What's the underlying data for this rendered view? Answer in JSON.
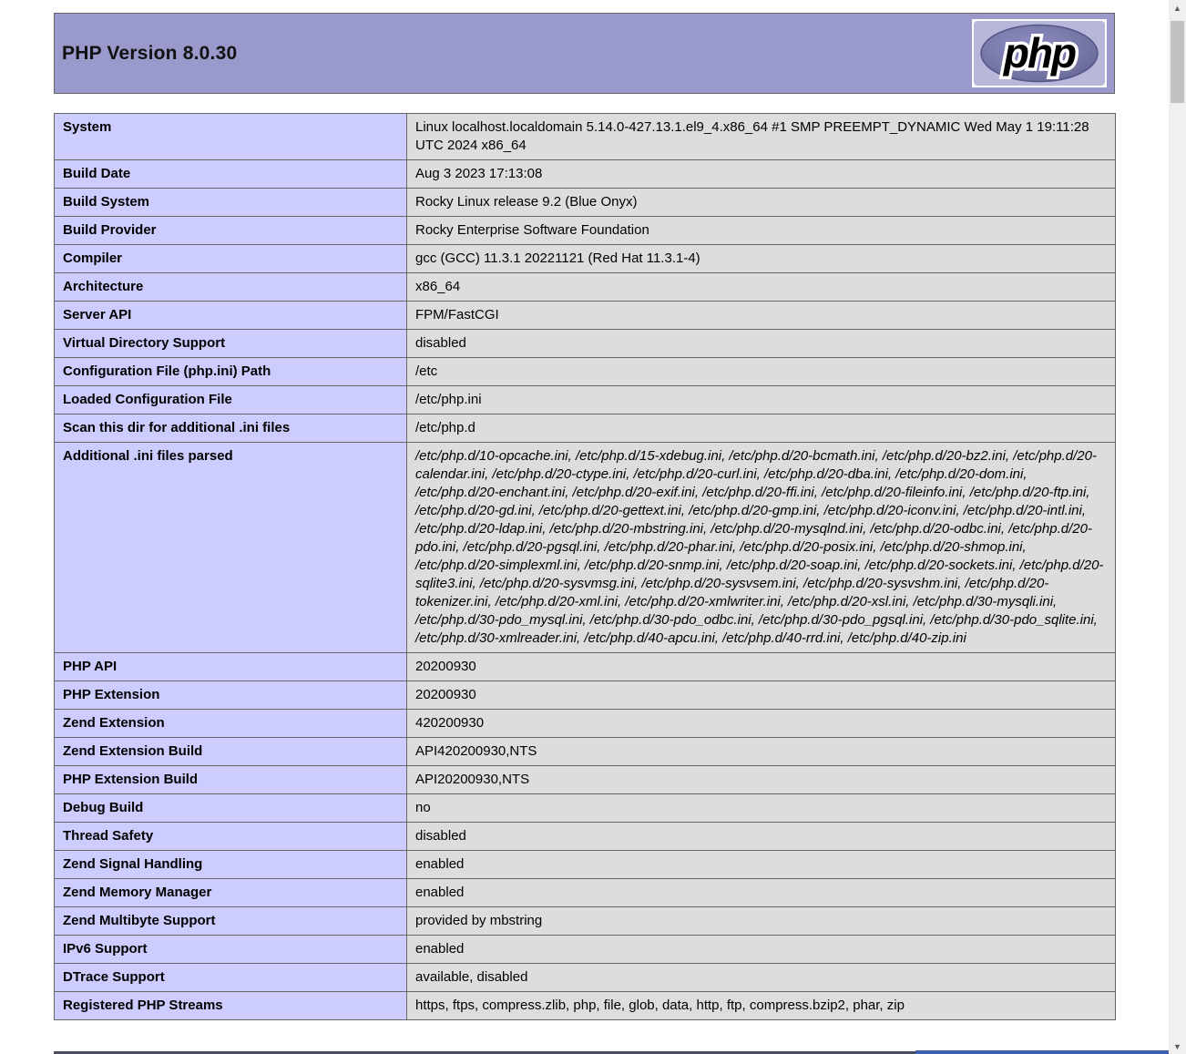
{
  "header": {
    "title": "PHP Version 8.0.30",
    "logo_text": "php"
  },
  "colors": {
    "header_bg": "#9999cc",
    "label_bg": "#ccccff",
    "value_bg": "#dddddd",
    "border": "#666666",
    "logo_frame": "#b7b7d9",
    "logo_ellipse_center": "#8e8ec4",
    "logo_ellipse_edge": "#5e5e96",
    "bottom_blue_bar": "#3c5fae"
  },
  "table": {
    "rows": [
      {
        "label": "System",
        "value": "Linux localhost.localdomain 5.14.0-427.13.1.el9_4.x86_64 #1 SMP PREEMPT_DYNAMIC Wed May 1 19:11:28 UTC 2024 x86_64",
        "italic": false
      },
      {
        "label": "Build Date",
        "value": "Aug 3 2023 17:13:08",
        "italic": false
      },
      {
        "label": "Build System",
        "value": "Rocky Linux release 9.2 (Blue Onyx)",
        "italic": false
      },
      {
        "label": "Build Provider",
        "value": "Rocky Enterprise Software Foundation",
        "italic": false
      },
      {
        "label": "Compiler",
        "value": "gcc (GCC) 11.3.1 20221121 (Red Hat 11.3.1-4)",
        "italic": false
      },
      {
        "label": "Architecture",
        "value": "x86_64",
        "italic": false
      },
      {
        "label": "Server API",
        "value": "FPM/FastCGI",
        "italic": false
      },
      {
        "label": "Virtual Directory Support",
        "value": "disabled",
        "italic": false
      },
      {
        "label": "Configuration File (php.ini) Path",
        "value": "/etc",
        "italic": false
      },
      {
        "label": "Loaded Configuration File",
        "value": "/etc/php.ini",
        "italic": false
      },
      {
        "label": "Scan this dir for additional .ini files",
        "value": "/etc/php.d",
        "italic": false
      },
      {
        "label": "Additional .ini files parsed",
        "value": "/etc/php.d/10-opcache.ini, /etc/php.d/15-xdebug.ini, /etc/php.d/20-bcmath.ini, /etc/php.d/20-bz2.ini, /etc/php.d/20-calendar.ini, /etc/php.d/20-ctype.ini, /etc/php.d/20-curl.ini, /etc/php.d/20-dba.ini, /etc/php.d/20-dom.ini, /etc/php.d/20-enchant.ini, /etc/php.d/20-exif.ini, /etc/php.d/20-ffi.ini, /etc/php.d/20-fileinfo.ini, /etc/php.d/20-ftp.ini, /etc/php.d/20-gd.ini, /etc/php.d/20-gettext.ini, /etc/php.d/20-gmp.ini, /etc/php.d/20-iconv.ini, /etc/php.d/20-intl.ini, /etc/php.d/20-ldap.ini, /etc/php.d/20-mbstring.ini, /etc/php.d/20-mysqlnd.ini, /etc/php.d/20-odbc.ini, /etc/php.d/20-pdo.ini, /etc/php.d/20-pgsql.ini, /etc/php.d/20-phar.ini, /etc/php.d/20-posix.ini, /etc/php.d/20-shmop.ini, /etc/php.d/20-simplexml.ini, /etc/php.d/20-snmp.ini, /etc/php.d/20-soap.ini, /etc/php.d/20-sockets.ini, /etc/php.d/20-sqlite3.ini, /etc/php.d/20-sysvmsg.ini, /etc/php.d/20-sysvsem.ini, /etc/php.d/20-sysvshm.ini, /etc/php.d/20-tokenizer.ini, /etc/php.d/20-xml.ini, /etc/php.d/20-xmlwriter.ini, /etc/php.d/20-xsl.ini, /etc/php.d/30-mysqli.ini, /etc/php.d/30-pdo_mysql.ini, /etc/php.d/30-pdo_odbc.ini, /etc/php.d/30-pdo_pgsql.ini, /etc/php.d/30-pdo_sqlite.ini, /etc/php.d/30-xmlreader.ini, /etc/php.d/40-apcu.ini, /etc/php.d/40-rrd.ini, /etc/php.d/40-zip.ini",
        "italic": true
      },
      {
        "label": "PHP API",
        "value": "20200930",
        "italic": false
      },
      {
        "label": "PHP Extension",
        "value": "20200930",
        "italic": false
      },
      {
        "label": "Zend Extension",
        "value": "420200930",
        "italic": false
      },
      {
        "label": "Zend Extension Build",
        "value": "API420200930,NTS",
        "italic": false
      },
      {
        "label": "PHP Extension Build",
        "value": "API20200930,NTS",
        "italic": false
      },
      {
        "label": "Debug Build",
        "value": "no",
        "italic": false
      },
      {
        "label": "Thread Safety",
        "value": "disabled",
        "italic": false
      },
      {
        "label": "Zend Signal Handling",
        "value": "enabled",
        "italic": false
      },
      {
        "label": "Zend Memory Manager",
        "value": "enabled",
        "italic": false
      },
      {
        "label": "Zend Multibyte Support",
        "value": "provided by mbstring",
        "italic": false
      },
      {
        "label": "IPv6 Support",
        "value": "enabled",
        "italic": false
      },
      {
        "label": "DTrace Support",
        "value": "available, disabled",
        "italic": false
      },
      {
        "label": "Registered PHP Streams",
        "value": "https, ftps, compress.zlib, php, file, glob, data, http, ftp, compress.bzip2, phar, zip",
        "italic": false
      }
    ]
  },
  "scrollbar": {
    "up_arrow": "▲",
    "down_arrow": "▼"
  }
}
